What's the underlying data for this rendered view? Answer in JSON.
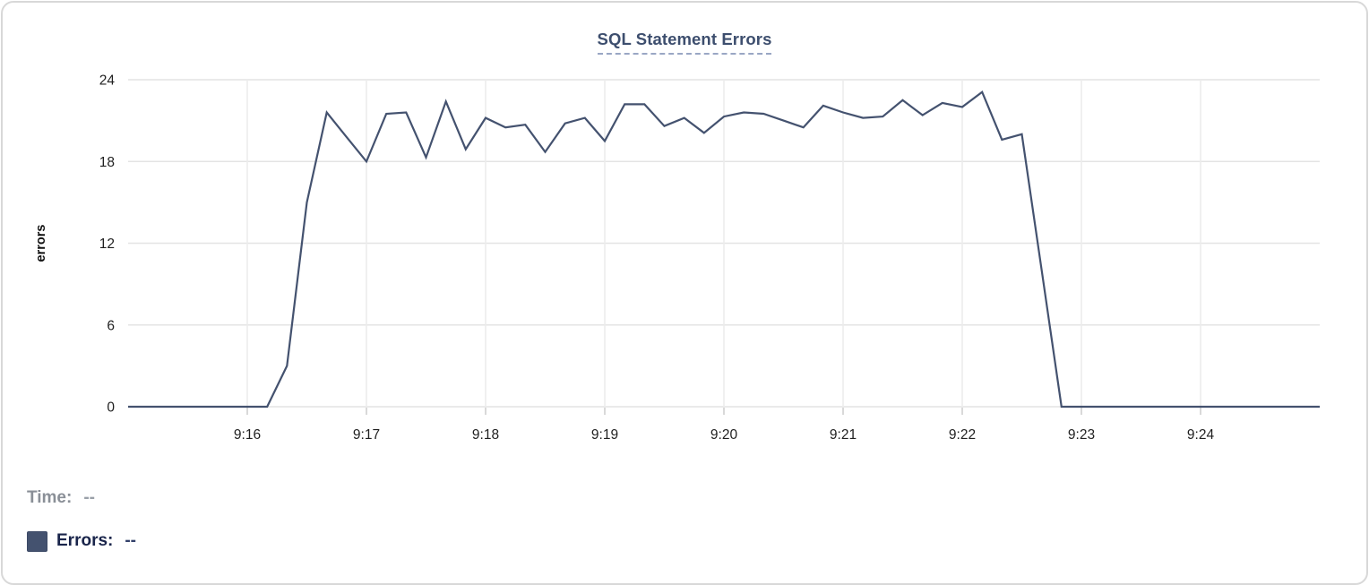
{
  "chart": {
    "title": "SQL Statement Errors"
  },
  "legend": {
    "time_label": "Time:",
    "time_value": "--",
    "errors_label": "Errors:",
    "errors_value": "--",
    "swatch_color": "#44526f"
  },
  "colors": {
    "line": "#44526f",
    "title": "#3d4e6e",
    "h_gridline": "#e4e4e4",
    "v_gridline": "#ececec",
    "tick": "#d9d9d9",
    "axis_text": "#1f1f1f",
    "card_border": "#d8d8d8"
  },
  "chart_data": {
    "type": "line",
    "title": "SQL Statement Errors",
    "xlabel": "",
    "ylabel": "errors",
    "ylim": [
      0,
      24
    ],
    "yticks": [
      0,
      6,
      12,
      18,
      24
    ],
    "xticks": [
      "9:16",
      "9:17",
      "9:18",
      "9:19",
      "9:20",
      "9:21",
      "9:22",
      "9:23",
      "9:24"
    ],
    "grid": true,
    "legend_position": "bottom-left",
    "x": [
      "9:15:00",
      "9:15:10",
      "9:15:20",
      "9:15:30",
      "9:15:40",
      "9:15:50",
      "9:16:00",
      "9:16:10",
      "9:16:20",
      "9:16:30",
      "9:16:40",
      "9:16:50",
      "9:17:00",
      "9:17:10",
      "9:17:20",
      "9:17:30",
      "9:17:40",
      "9:17:50",
      "9:18:00",
      "9:18:10",
      "9:18:20",
      "9:18:30",
      "9:18:40",
      "9:18:50",
      "9:19:00",
      "9:19:10",
      "9:19:20",
      "9:19:30",
      "9:19:40",
      "9:19:50",
      "9:20:00",
      "9:20:10",
      "9:20:20",
      "9:20:30",
      "9:20:40",
      "9:20:50",
      "9:21:00",
      "9:21:10",
      "9:21:20",
      "9:21:30",
      "9:21:40",
      "9:21:50",
      "9:22:00",
      "9:22:10",
      "9:22:20",
      "9:22:30",
      "9:22:40",
      "9:22:50",
      "9:23:00",
      "9:23:10",
      "9:23:20",
      "9:23:30",
      "9:23:40",
      "9:23:50",
      "9:24:00",
      "9:24:10",
      "9:24:20",
      "9:24:30",
      "9:24:40",
      "9:24:50",
      "9:25:00"
    ],
    "series": [
      {
        "name": "Errors",
        "color": "#44526f",
        "values": [
          0,
          0,
          0,
          0,
          0,
          0,
          0,
          0,
          3,
          15,
          21.6,
          19.8,
          18,
          21.5,
          21.6,
          18.3,
          22.4,
          18.9,
          21.2,
          20.5,
          20.7,
          18.7,
          20.8,
          21.2,
          19.5,
          22.2,
          22.2,
          20.6,
          21.2,
          20.1,
          21.3,
          21.6,
          21.5,
          21,
          20.5,
          22.1,
          21.6,
          21.2,
          21.3,
          22.5,
          21.4,
          22.3,
          22,
          23.1,
          19.6,
          20,
          10,
          0,
          0,
          0,
          0,
          0,
          0,
          0,
          0,
          0,
          0,
          0,
          0,
          0,
          0
        ]
      }
    ]
  }
}
